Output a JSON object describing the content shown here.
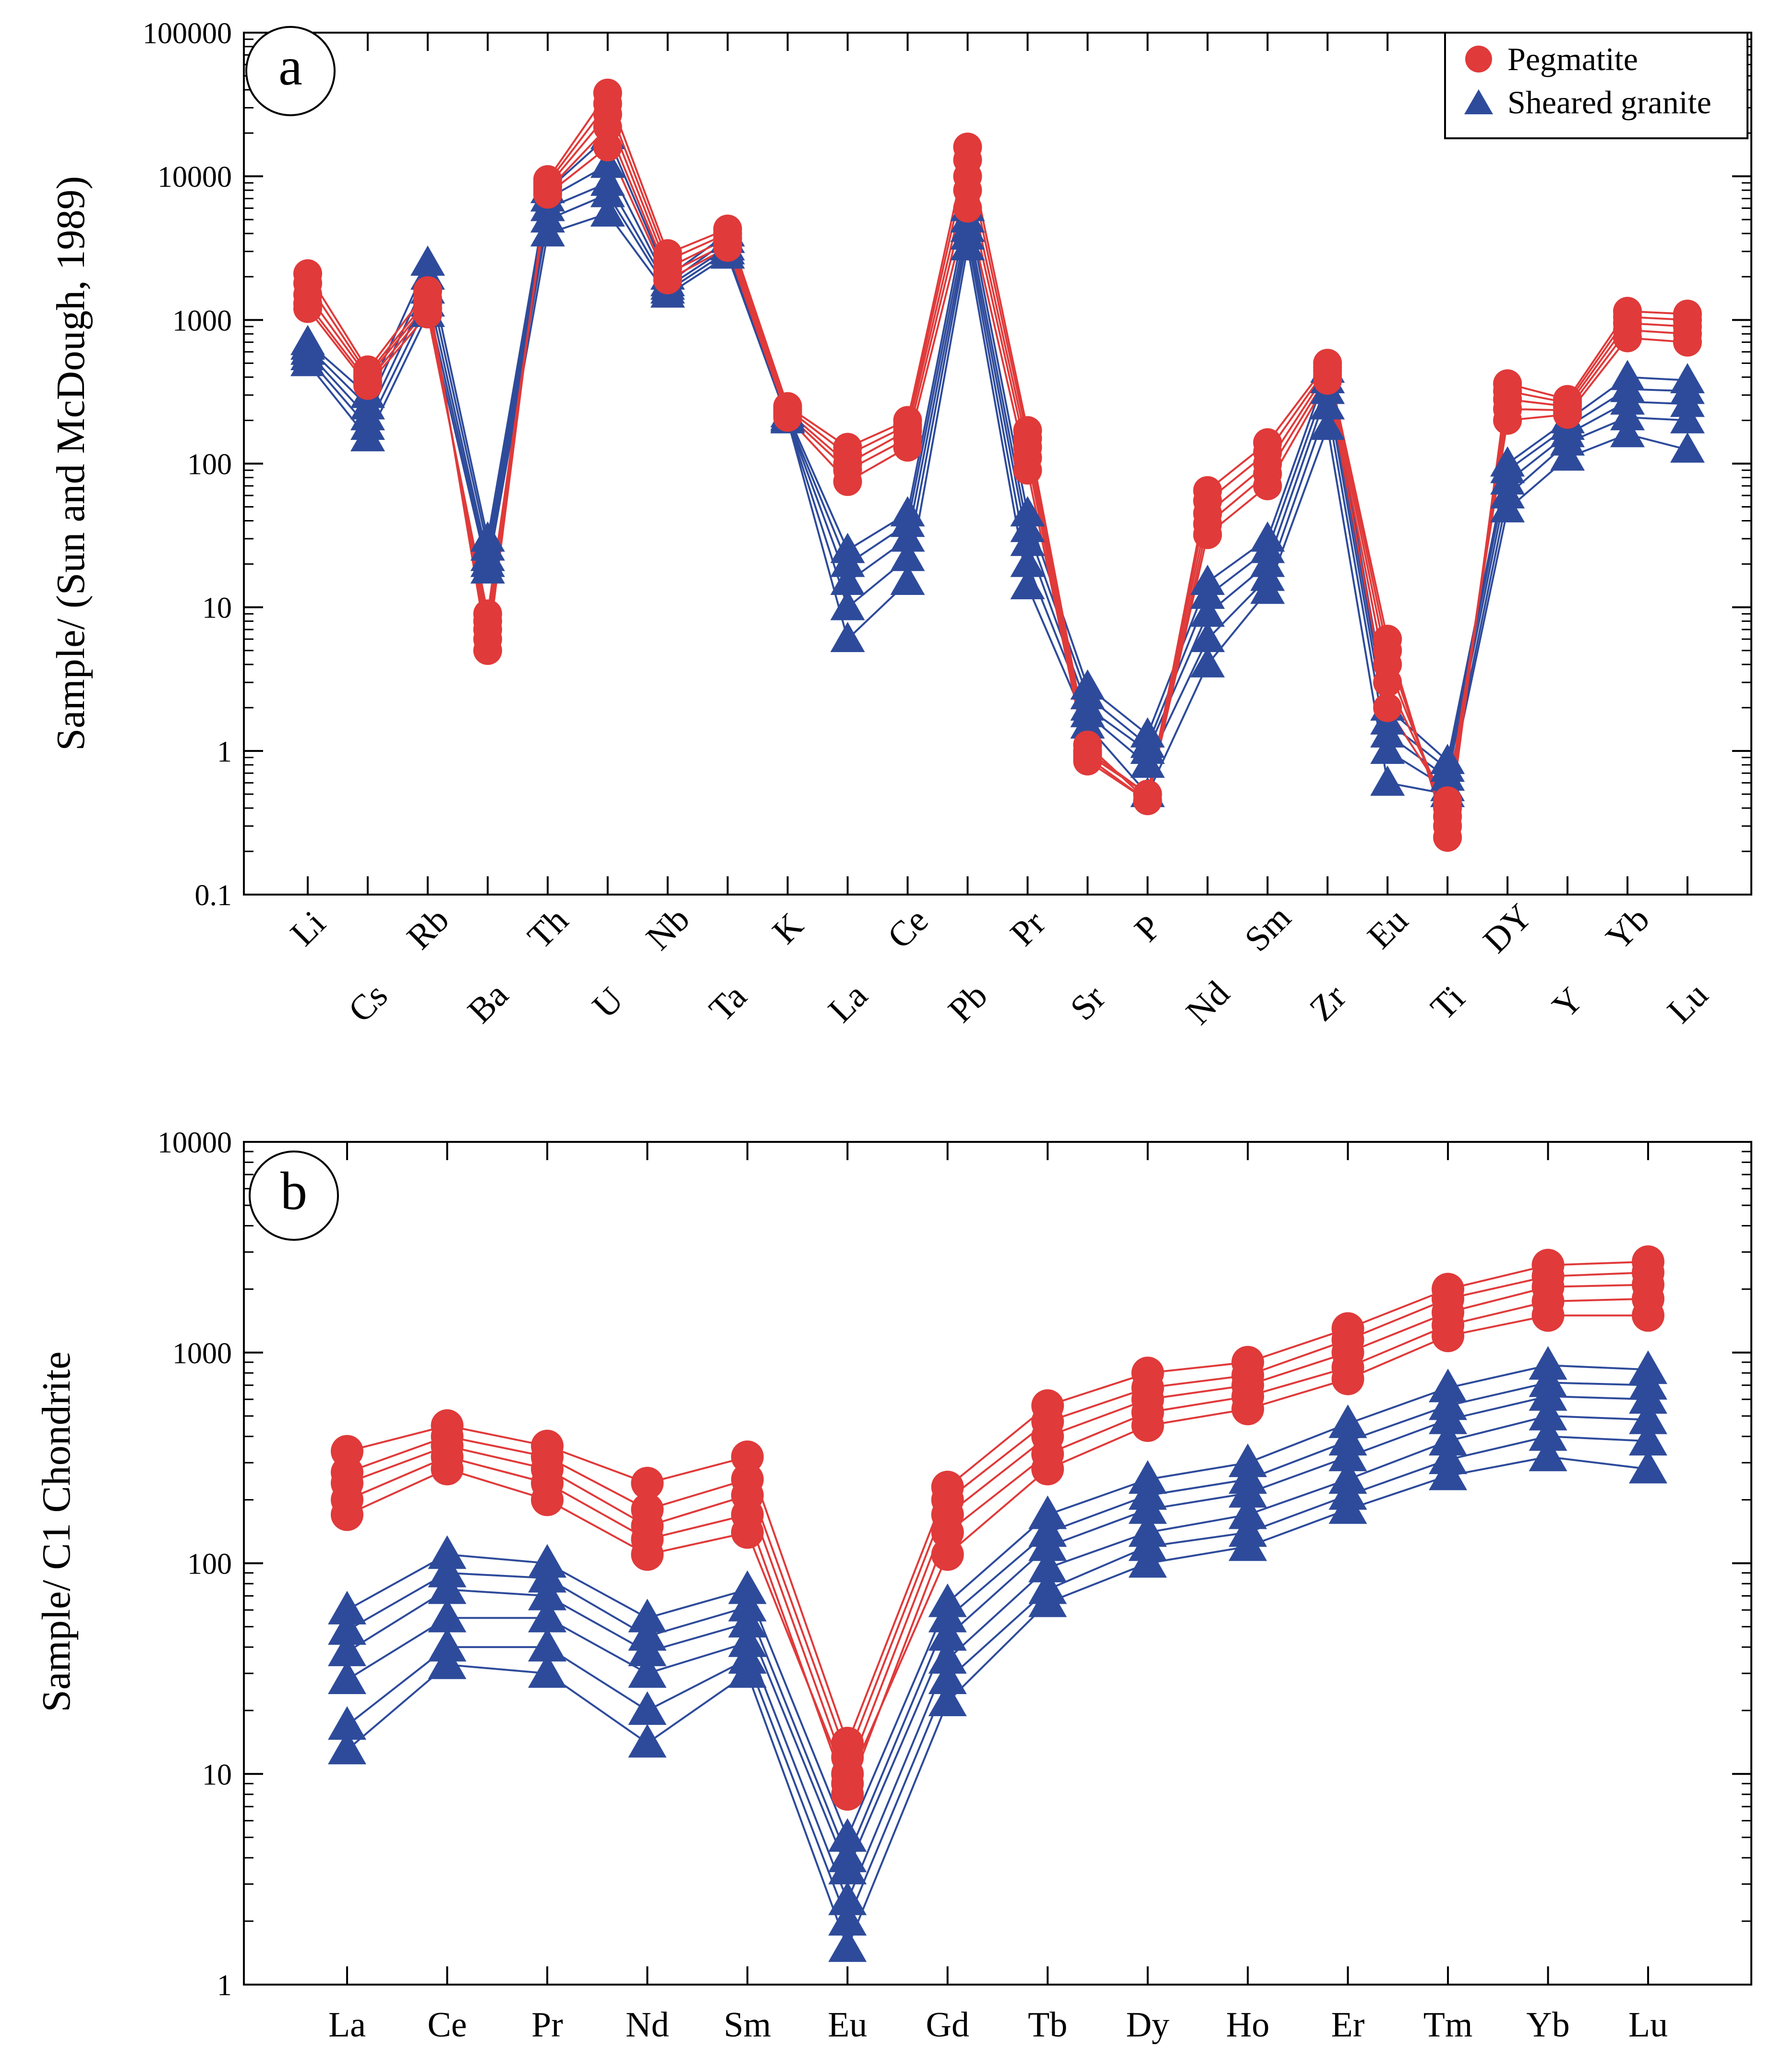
{
  "colors": {
    "pegmatite": "#e03a3a",
    "sheared_granite": "#2e4b9b",
    "axis": "#000000"
  },
  "chart_data": [
    {
      "type": "line",
      "panel_label": "a",
      "ylabel": "Sample/ (Sun and McDough, 1989)",
      "yscale": "log",
      "ylim": [
        0.1,
        100000
      ],
      "ytick_labels": [
        "0.1",
        "1",
        "10",
        "100",
        "1000",
        "10000",
        "100000"
      ],
      "categories": [
        "Li",
        "Cs",
        "Rb",
        "Ba",
        "Th",
        "U",
        "Nb",
        "Ta",
        "K",
        "La",
        "Ce",
        "Pb",
        "Pr",
        "Sr",
        "P",
        "Nd",
        "Sm",
        "Zr",
        "Eu",
        "Ti",
        "DY",
        "Y",
        "Yb",
        "Lu"
      ],
      "legend": [
        {
          "label": "Pegmatite",
          "marker": "circle"
        },
        {
          "label": "Sheared granite",
          "marker": "triangle"
        }
      ],
      "groups": [
        {
          "name": "Pegmatite",
          "marker": "circle",
          "series": [
            {
              "name": "Pegmatite 1",
              "values": [
                2100,
                450,
                1600,
                5,
                9500,
                38000,
                2900,
                4300,
                250,
                130,
                200,
                16000,
                170,
                1.1,
                0.45,
                65,
                140,
                500,
                6,
                0.25,
                360,
                280,
                1150,
                1100
              ]
            },
            {
              "name": "Pegmatite 2",
              "values": [
                1800,
                420,
                1400,
                6,
                9000,
                32000,
                2600,
                4000,
                240,
                115,
                185,
                13000,
                150,
                1.0,
                0.5,
                55,
                120,
                470,
                5,
                0.3,
                320,
                265,
                1050,
                1000
              ]
            },
            {
              "name": "Pegmatite 3",
              "values": [
                1500,
                400,
                1300,
                7,
                8500,
                27000,
                2300,
                3700,
                230,
                100,
                170,
                10000,
                130,
                0.95,
                0.5,
                45,
                100,
                440,
                4,
                0.35,
                280,
                250,
                950,
                900
              ]
            },
            {
              "name": "Pegmatite 4",
              "values": [
                1300,
                370,
                1200,
                8,
                8000,
                22000,
                2100,
                3400,
                220,
                90,
                150,
                8000,
                110,
                0.9,
                0.45,
                38,
                85,
                410,
                3,
                0.4,
                240,
                235,
                850,
                800
              ]
            },
            {
              "name": "Pegmatite 5",
              "values": [
                1200,
                350,
                1100,
                9,
                7500,
                16000,
                1900,
                3200,
                210,
                75,
                130,
                6000,
                90,
                0.85,
                0.45,
                32,
                70,
                380,
                2,
                0.45,
                200,
                220,
                750,
                700
              ]
            }
          ]
        },
        {
          "name": "Sheared granite",
          "marker": "triangle",
          "series": [
            {
              "name": "Sheared granite 1",
              "values": [
                700,
                300,
                2500,
                30,
                8000,
                19000,
                2000,
                4000,
                220,
                25,
                45,
                6000,
                45,
                2.8,
                1.3,
                15,
                30,
                450,
                2,
                0.85,
                100,
                200,
                400,
                380
              ]
            },
            {
              "name": "Sheared granite 2",
              "values": [
                650,
                250,
                2000,
                26,
                7000,
                12000,
                1800,
                3600,
                210,
                20,
                38,
                5000,
                35,
                2.4,
                1.1,
                12,
                25,
                380,
                1.6,
                0.75,
                90,
                180,
                330,
                320
              ]
            },
            {
              "name": "Sheared granite 3",
              "values": [
                600,
                210,
                1600,
                22,
                6000,
                9000,
                1700,
                3200,
                205,
                15,
                30,
                4300,
                28,
                2.0,
                1.0,
                9,
                20,
                320,
                1.3,
                0.65,
                75,
                160,
                270,
                260
              ]
            },
            {
              "name": "Sheared granite 4",
              "values": [
                550,
                180,
                1300,
                20,
                5000,
                7500,
                1600,
                3000,
                200,
                10,
                22,
                3800,
                20,
                1.8,
                0.8,
                6,
                16,
                250,
                1.0,
                0.55,
                60,
                140,
                210,
                200
              ]
            },
            {
              "name": "Sheared granite 5",
              "values": [
                500,
                150,
                1100,
                18,
                4000,
                5500,
                1500,
                2800,
                200,
                6,
                15,
                3200,
                14,
                1.5,
                0.5,
                4,
                13,
                180,
                0.6,
                0.5,
                48,
                110,
                160,
                125
              ]
            }
          ]
        }
      ]
    },
    {
      "type": "line",
      "panel_label": "b",
      "ylabel": "Sample/ C1 Chondrite",
      "yscale": "log",
      "ylim": [
        1,
        10000
      ],
      "ytick_labels": [
        "1",
        "10",
        "100",
        "1000",
        "10000"
      ],
      "categories": [
        "La",
        "Ce",
        "Pr",
        "Nd",
        "Sm",
        "Eu",
        "Gd",
        "Tb",
        "Dy",
        "Ho",
        "Er",
        "Tm",
        "Yb",
        "Lu"
      ],
      "groups": [
        {
          "name": "Pegmatite",
          "marker": "circle",
          "series": [
            {
              "name": "Pegmatite 1",
              "values": [
                340,
                450,
                360,
                240,
                320,
                14,
                230,
                560,
                800,
                900,
                1300,
                2000,
                2600,
                2700
              ]
            },
            {
              "name": "Pegmatite 2",
              "values": [
                270,
                400,
                320,
                180,
                250,
                12,
                200,
                470,
                680,
                780,
                1150,
                1800,
                2300,
                2400
              ]
            },
            {
              "name": "Pegmatite 3",
              "values": [
                240,
                360,
                280,
                150,
                210,
                10,
                170,
                400,
                600,
                700,
                1000,
                1550,
                2050,
                2100
              ]
            },
            {
              "name": "Pegmatite 4",
              "values": [
                200,
                320,
                240,
                130,
                170,
                8,
                140,
                330,
                520,
                620,
                850,
                1350,
                1750,
                1800
              ]
            },
            {
              "name": "Pegmatite 5",
              "values": [
                170,
                280,
                200,
                110,
                140,
                9,
                110,
                280,
                450,
                540,
                750,
                1200,
                1500,
                1500
              ]
            }
          ]
        },
        {
          "name": "Sheared granite",
          "marker": "triangle",
          "series": [
            {
              "name": "Sheared granite 1",
              "values": [
                60,
                110,
                100,
                55,
                75,
                5,
                65,
                170,
                250,
                300,
                460,
                680,
                870,
                830
              ]
            },
            {
              "name": "Sheared granite 2",
              "values": [
                48,
                90,
                85,
                45,
                62,
                4,
                55,
                140,
                210,
                250,
                380,
                560,
                720,
                700
              ]
            },
            {
              "name": "Sheared granite 3",
              "values": [
                38,
                75,
                70,
                38,
                52,
                3.5,
                45,
                120,
                180,
                215,
                320,
                480,
                620,
                600
              ]
            },
            {
              "name": "Sheared granite 4",
              "values": [
                28,
                55,
                55,
                30,
                42,
                2.5,
                35,
                95,
                140,
                170,
                250,
                380,
                500,
                480
              ]
            },
            {
              "name": "Sheared granite 5",
              "values": [
                17,
                40,
                40,
                20,
                35,
                2,
                28,
                75,
                120,
                140,
                210,
                310,
                400,
                380
              ]
            },
            {
              "name": "Sheared granite 6",
              "values": [
                13,
                33,
                30,
                14,
                30,
                1.5,
                22,
                65,
                100,
                120,
                180,
                260,
                320,
                280
              ]
            }
          ]
        }
      ]
    }
  ]
}
